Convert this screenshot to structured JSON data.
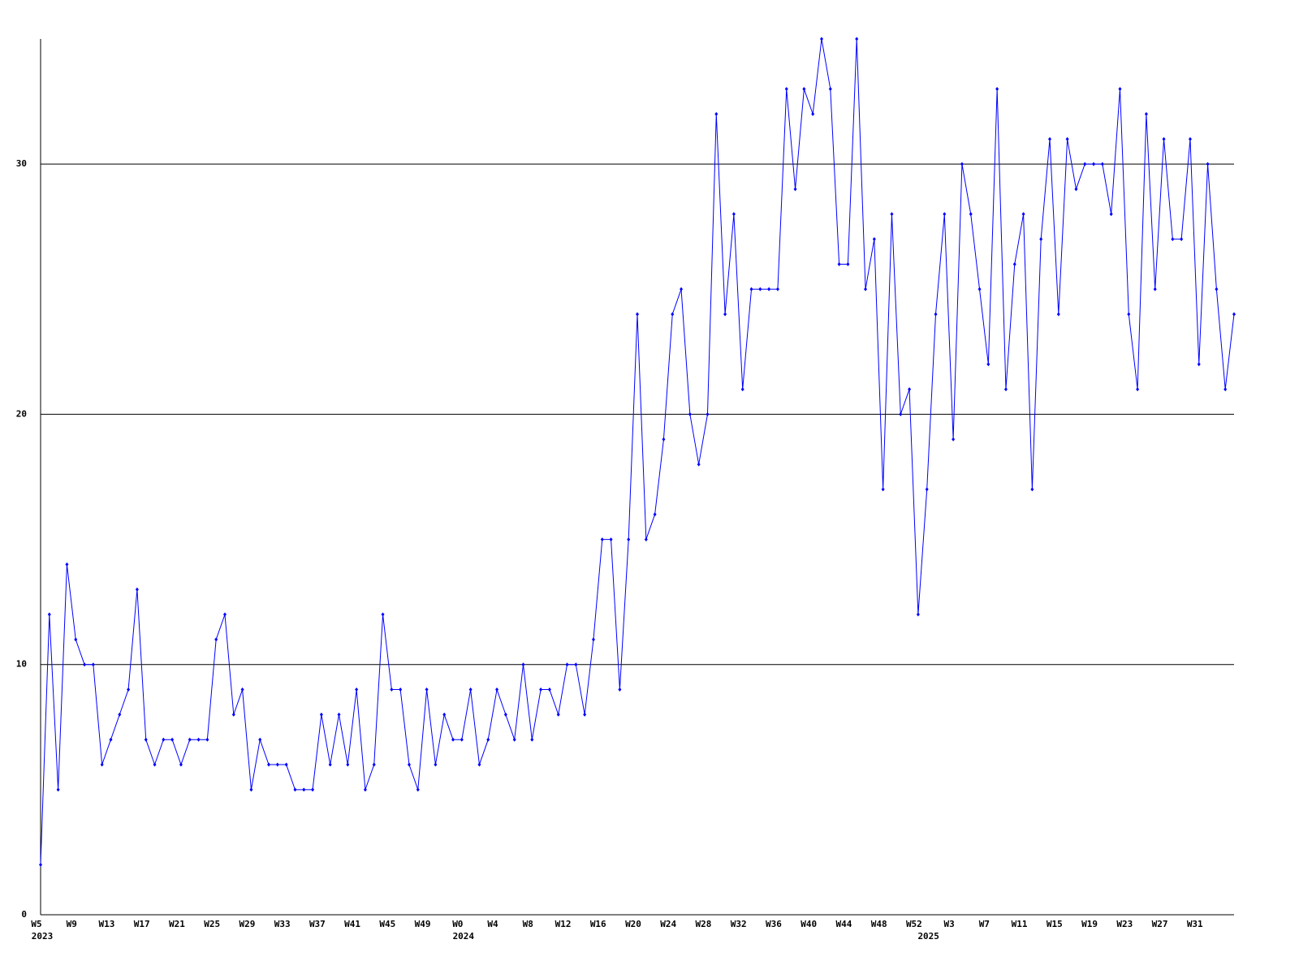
{
  "chart_data": {
    "type": "line",
    "categories": [
      "W5",
      null,
      null,
      null,
      "W9",
      null,
      null,
      null,
      "W13",
      null,
      null,
      null,
      "W17",
      null,
      null,
      null,
      "W21",
      null,
      null,
      null,
      "W25",
      null,
      null,
      null,
      "W29",
      null,
      null,
      null,
      "W33",
      null,
      null,
      null,
      "W37",
      null,
      null,
      null,
      "W41",
      null,
      null,
      null,
      "W45",
      null,
      null,
      null,
      "W49",
      null,
      null,
      null,
      "W0",
      null,
      null,
      null,
      "W4",
      null,
      null,
      null,
      "W8",
      null,
      null,
      null,
      "W12",
      null,
      null,
      null,
      "W16",
      null,
      null,
      null,
      "W20",
      null,
      null,
      null,
      "W24",
      null,
      null,
      null,
      "W28",
      null,
      null,
      null,
      "W32",
      null,
      null,
      null,
      "W36",
      null,
      null,
      null,
      "W40",
      null,
      null,
      null,
      "W44",
      null,
      null,
      null,
      "W48",
      null,
      null,
      null,
      "W52",
      null,
      null,
      null,
      "W3",
      null,
      null,
      null,
      "W7",
      null,
      null,
      null,
      "W11",
      null,
      null,
      null,
      "W15",
      null,
      null,
      null,
      "W19",
      null,
      null,
      null,
      "W23",
      null,
      null,
      null,
      "W27",
      null,
      null,
      null,
      "W31",
      null,
      null,
      null,
      null
    ],
    "years": [
      "2023",
      null,
      null,
      null,
      null,
      null,
      null,
      null,
      null,
      null,
      null,
      null,
      null,
      null,
      null,
      null,
      null,
      null,
      null,
      null,
      null,
      null,
      null,
      null,
      null,
      null,
      null,
      null,
      null,
      null,
      null,
      null,
      null,
      null,
      null,
      null,
      null,
      null,
      null,
      null,
      null,
      null,
      null,
      null,
      null,
      null,
      null,
      null,
      "2024",
      null,
      null,
      null,
      null,
      null,
      null,
      null,
      null,
      null,
      null,
      null,
      null,
      null,
      null,
      null,
      null,
      null,
      null,
      null,
      null,
      null,
      null,
      null,
      null,
      null,
      null,
      null,
      null,
      null,
      null,
      null,
      null,
      null,
      null,
      null,
      null,
      null,
      null,
      null,
      null,
      null,
      null,
      null,
      null,
      null,
      null,
      null,
      null,
      null,
      null,
      null,
      null,
      "2025",
      null,
      null,
      null,
      null,
      null,
      null,
      null,
      null,
      null,
      null,
      null,
      null,
      null,
      null,
      null,
      null,
      null,
      null,
      null,
      null,
      null,
      null,
      null,
      null,
      null,
      null,
      null,
      null,
      null,
      null,
      null,
      null,
      null,
      null
    ],
    "values": [
      2,
      12,
      5,
      14,
      11,
      10,
      10,
      6,
      7,
      8,
      9,
      13,
      7,
      6,
      7,
      7,
      6,
      7,
      7,
      7,
      11,
      12,
      8,
      9,
      5,
      7,
      6,
      6,
      6,
      5,
      5,
      5,
      8,
      6,
      8,
      6,
      9,
      5,
      6,
      12,
      9,
      9,
      6,
      5,
      9,
      6,
      8,
      7,
      7,
      9,
      6,
      7,
      9,
      8,
      7,
      10,
      7,
      9,
      9,
      8,
      10,
      10,
      8,
      11,
      15,
      15,
      9,
      15,
      24,
      15,
      16,
      19,
      24,
      25,
      20,
      18,
      20,
      32,
      24,
      28,
      21,
      25,
      25,
      25,
      25,
      33,
      29,
      33,
      32,
      35,
      33,
      26,
      26,
      35,
      25,
      27,
      17,
      28,
      20,
      21,
      12,
      17,
      24,
      28,
      19,
      30,
      28,
      25,
      22,
      33,
      21,
      26,
      28,
      17,
      27,
      31,
      24,
      31,
      29,
      30,
      30,
      30,
      28,
      33,
      24,
      21,
      32,
      25,
      31,
      27,
      27,
      31,
      22,
      30,
      25,
      21,
      24
    ],
    "color": "#0000ff",
    "ylim": [
      0,
      35
    ],
    "yticks": [
      0,
      10,
      20,
      30
    ],
    "grid": true
  }
}
